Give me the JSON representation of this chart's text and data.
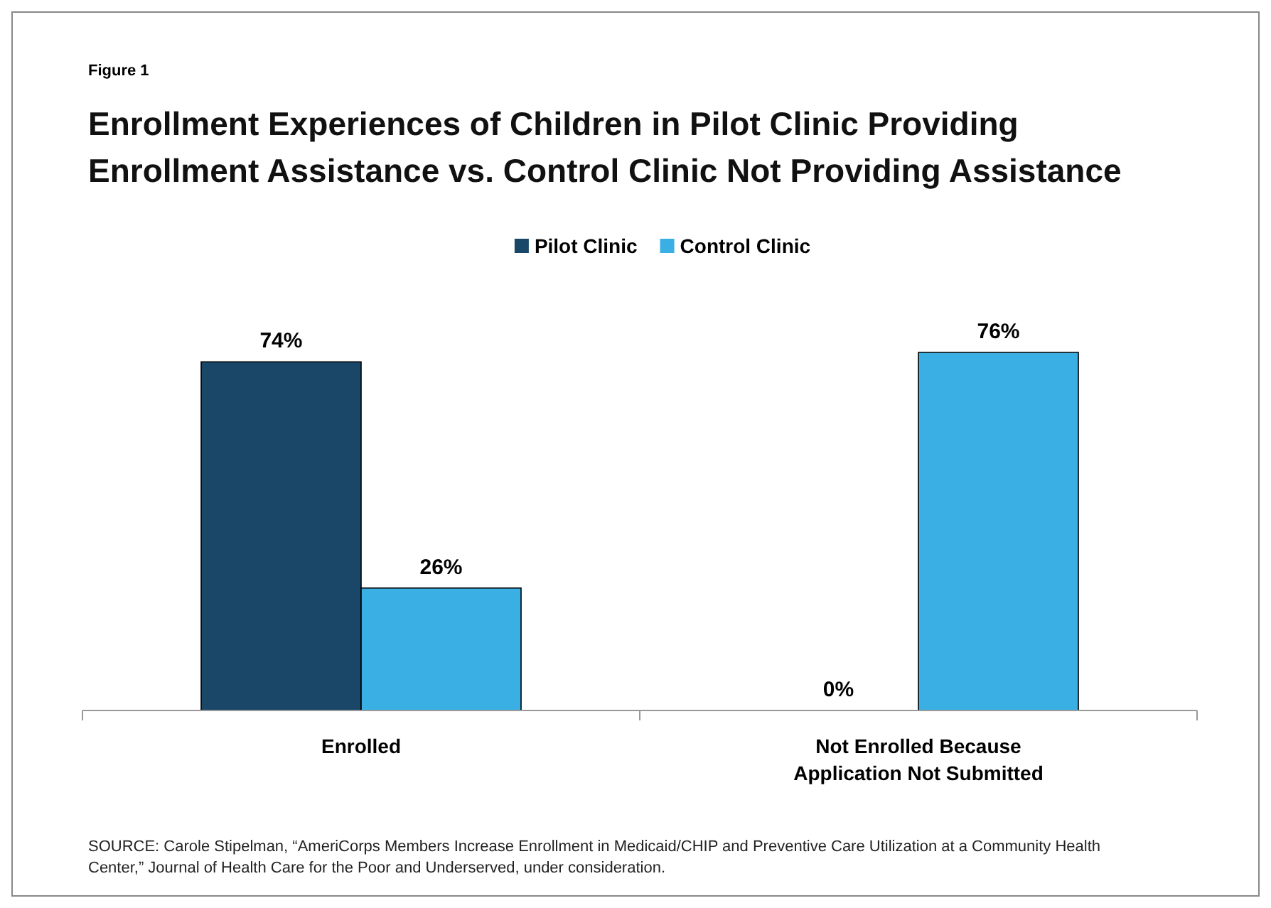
{
  "chart_data": {
    "type": "bar",
    "title": "Enrollment Experiences of Children in Pilot Clinic Providing Enrollment Assistance vs. Control Clinic Not Providing Assistance",
    "categories": [
      "Enrolled",
      "Not Enrolled Because Application Not Submitted"
    ],
    "series": [
      {
        "name": "Pilot Clinic",
        "color": "#1a4668",
        "values": [
          74,
          0
        ],
        "value_labels": [
          "74%",
          "0%"
        ]
      },
      {
        "name": "Control Clinic",
        "color": "#3aafe4",
        "values": [
          26,
          76
        ],
        "value_labels": [
          "26%",
          "76%"
        ]
      }
    ],
    "legend": "top",
    "annotations": [
      "Figure 1",
      "SOURCE: Carole Stipelman, “AmeriCorps Members Increase Enrollment in Medicaid/CHIP and Preventive Care Utilization at a Community Health Center,” Journal of  Health Care for the Poor and Underserved, under consideration."
    ]
  }
}
